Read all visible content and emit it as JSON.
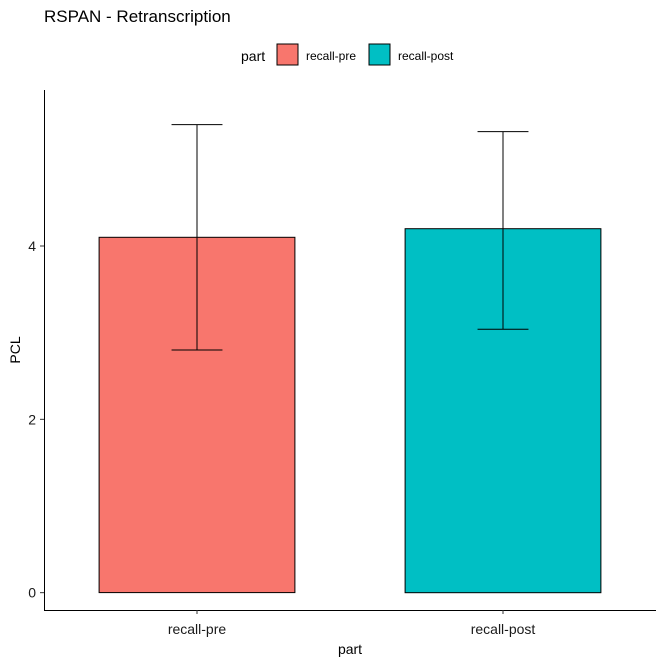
{
  "chart_data": {
    "type": "bar",
    "title": "RSPAN - Retranscription",
    "xlabel": "part",
    "ylabel": "PCL",
    "legend": {
      "title": "part",
      "placement": "top",
      "entries": [
        {
          "label": "recall-pre",
          "color": "#F8766D"
        },
        {
          "label": "recall-post",
          "color": "#00BFC4"
        }
      ]
    },
    "categories": [
      "recall-pre",
      "recall-post"
    ],
    "values": [
      4.1,
      4.2
    ],
    "error_bars": [
      {
        "low": 2.8,
        "high": 5.4
      },
      {
        "low": 3.04,
        "high": 5.32
      }
    ],
    "colors": [
      "#F8766D",
      "#00BFC4"
    ],
    "ylim": [
      -0.2,
      5.8
    ],
    "yticks": [
      0,
      2,
      4
    ],
    "ytick_labels": [
      "0",
      "2",
      "4"
    ],
    "grid": false
  }
}
